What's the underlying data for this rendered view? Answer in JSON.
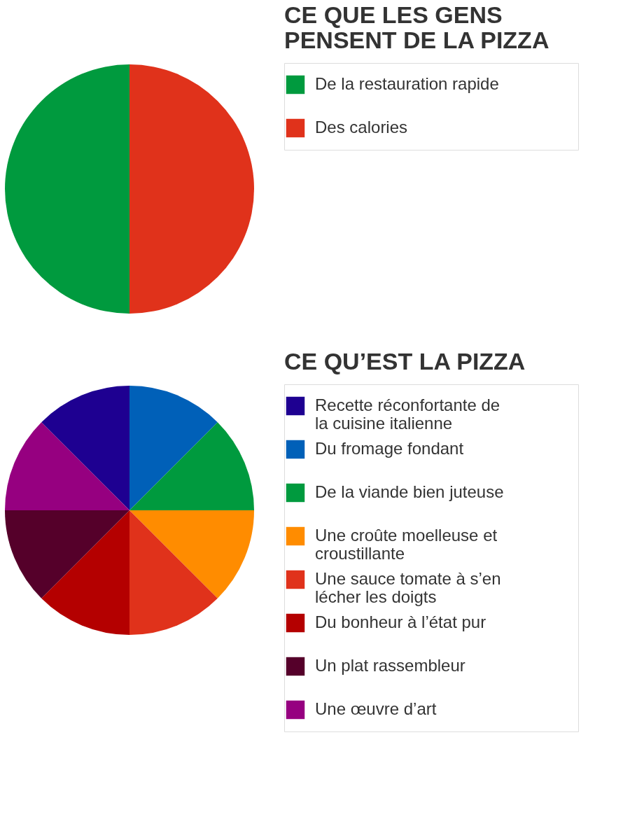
{
  "chart_data": [
    {
      "type": "pie",
      "title": "CE QUE LES GENS PENSENT DE LA PIZZA",
      "categories": [
        "De la restauration rapide",
        "Des calories"
      ],
      "values": [
        50,
        50
      ],
      "colors": [
        "#009a3e",
        "#e0321b"
      ],
      "legend": "right"
    },
    {
      "type": "pie",
      "title": "CE QU’EST LA PIZZA",
      "categories": [
        "Recette réconfortante de la cuisine italienne",
        "Du fromage fondant",
        "De la viande bien juteuse",
        "Une croûte moelleuse et croustillante",
        "Une sauce tomate à s’en lécher les doigts",
        "Du bonheur à l’état pur",
        "Un plat rassembleur",
        "Une œuvre d’art"
      ],
      "values": [
        12.5,
        12.5,
        12.5,
        12.5,
        12.5,
        12.5,
        12.5,
        12.5
      ],
      "colors": [
        "#1e0091",
        "#0060b8",
        "#009a3e",
        "#ff8c00",
        "#e0321b",
        "#b40000",
        "#55002a",
        "#960080"
      ],
      "legend": "right"
    }
  ]
}
